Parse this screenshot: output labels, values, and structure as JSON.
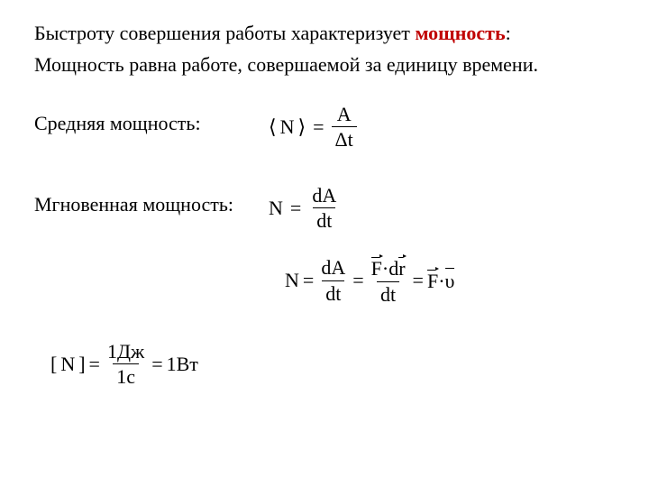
{
  "colors": {
    "text": "#000000",
    "accent": "#c00000",
    "bg": "#ffffff"
  },
  "typography": {
    "font_family": "Times New Roman",
    "base_size_pt": 16,
    "title_size_pt": 16
  },
  "title": {
    "pre": "Быстроту совершения работы характеризует ",
    "accent": "мощность",
    "post": ":"
  },
  "subtitle": "Мощность равна работе, совершаемой за единицу времени.",
  "labels": {
    "avg": "Средняя мощность:",
    "inst": "Мгновенная мощность:"
  },
  "formulas": {
    "avg": {
      "lhs_open": "⟨",
      "lhs_sym": "N",
      "lhs_close": "⟩",
      "eq": "=",
      "num": "A",
      "den": "Δt"
    },
    "inst": {
      "lhs": "N",
      "eq": "=",
      "num": "dA",
      "den": "dt"
    },
    "chain": {
      "lhs": "N",
      "eq": "=",
      "t1_num": "dA",
      "t1_den": "dt",
      "t2_num_F": "F",
      "t2_num_dot": "·",
      "t2_num_d": "d",
      "t2_num_r": "r",
      "t2_den": "dt",
      "t3_F": "F",
      "t3_dot": "·",
      "t3_v": "υ"
    },
    "unit": {
      "open": "[",
      "sym": "N",
      "close": "]",
      "eq": "=",
      "num": "1Дж",
      "den": "1с",
      "rhs": "1Вт"
    }
  }
}
